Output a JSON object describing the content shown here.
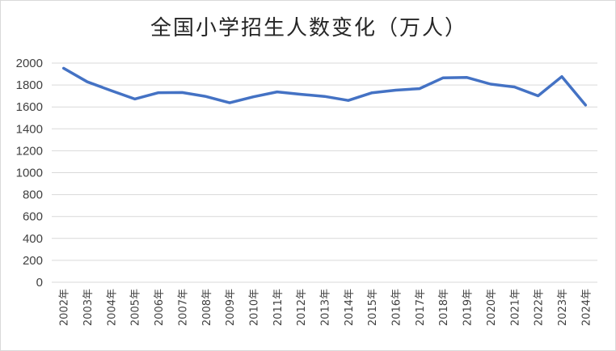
{
  "chart_data": {
    "type": "line",
    "title": "全国小学招生人数变化（万人）",
    "xlabel": "",
    "ylabel": "",
    "categories": [
      "2002年",
      "2003年",
      "2004年",
      "2005年",
      "2006年",
      "2007年",
      "2008年",
      "2009年",
      "2010年",
      "2011年",
      "2012年",
      "2013年",
      "2014年",
      "2015年",
      "2016年",
      "2017年",
      "2018年",
      "2019年",
      "2020年",
      "2021年",
      "2022年",
      "2023年",
      "2024年"
    ],
    "series": [
      {
        "values": [
          1953,
          1829,
          1749,
          1672,
          1730,
          1731,
          1695,
          1638,
          1692,
          1737,
          1715,
          1696,
          1659,
          1729,
          1753,
          1767,
          1866,
          1869,
          1808,
          1782,
          1701,
          1877,
          1617
        ]
      }
    ],
    "yticks": [
      0,
      200,
      400,
      600,
      800,
      1000,
      1200,
      1400,
      1600,
      1800,
      2000
    ],
    "ylim": [
      0,
      2000
    ],
    "grid": true,
    "legend": "none",
    "colors": {
      "series": "#4472c4",
      "grid": "#d9d9d9",
      "text": "#404040"
    }
  }
}
